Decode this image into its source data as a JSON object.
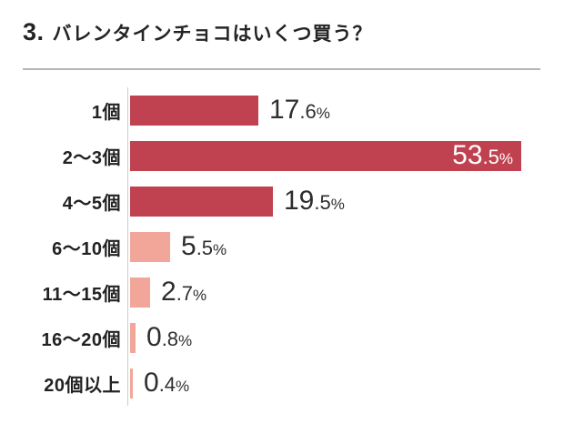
{
  "page": {
    "question_number": "3.",
    "title": "バレンタインチョコはいくつ買う？"
  },
  "colors": {
    "bar_dark": "#c0414f",
    "bar_light": "#f2a69a",
    "text": "#2e2e2e",
    "inside_label_text": "#ffffff",
    "axis_line": "#cccccc",
    "divider": "#b5b5b5"
  },
  "chart_data": {
    "type": "bar",
    "orientation": "horizontal",
    "title": "バレンタインチョコはいくつ買う？",
    "categories": [
      "1個",
      "2〜3個",
      "4〜5個",
      "6〜10個",
      "11〜15個",
      "16〜20個",
      "20個以上"
    ],
    "values": [
      17.6,
      53.5,
      19.5,
      5.5,
      2.7,
      0.8,
      0.4
    ],
    "unit": "%",
    "xlim": [
      0,
      53.5
    ],
    "grid": false,
    "legend": false,
    "bars": [
      {
        "label": "1個",
        "value": 17.6,
        "display": "17.6%",
        "color": "dark",
        "value_label_position": "outside"
      },
      {
        "label": "2〜3個",
        "value": 53.5,
        "display": "53.5%",
        "color": "dark",
        "value_label_position": "inside"
      },
      {
        "label": "4〜5個",
        "value": 19.5,
        "display": "19.5%",
        "color": "dark",
        "value_label_position": "outside"
      },
      {
        "label": "6〜10個",
        "value": 5.5,
        "display": "5.5%",
        "color": "light",
        "value_label_position": "outside"
      },
      {
        "label": "11〜15個",
        "value": 2.7,
        "display": "2.7%",
        "color": "light",
        "value_label_position": "outside"
      },
      {
        "label": "16〜20個",
        "value": 0.8,
        "display": "0.8%",
        "color": "light",
        "value_label_position": "outside"
      },
      {
        "label": "20個以上",
        "value": 0.4,
        "display": "0.4%",
        "color": "light",
        "value_label_position": "outside"
      }
    ]
  }
}
